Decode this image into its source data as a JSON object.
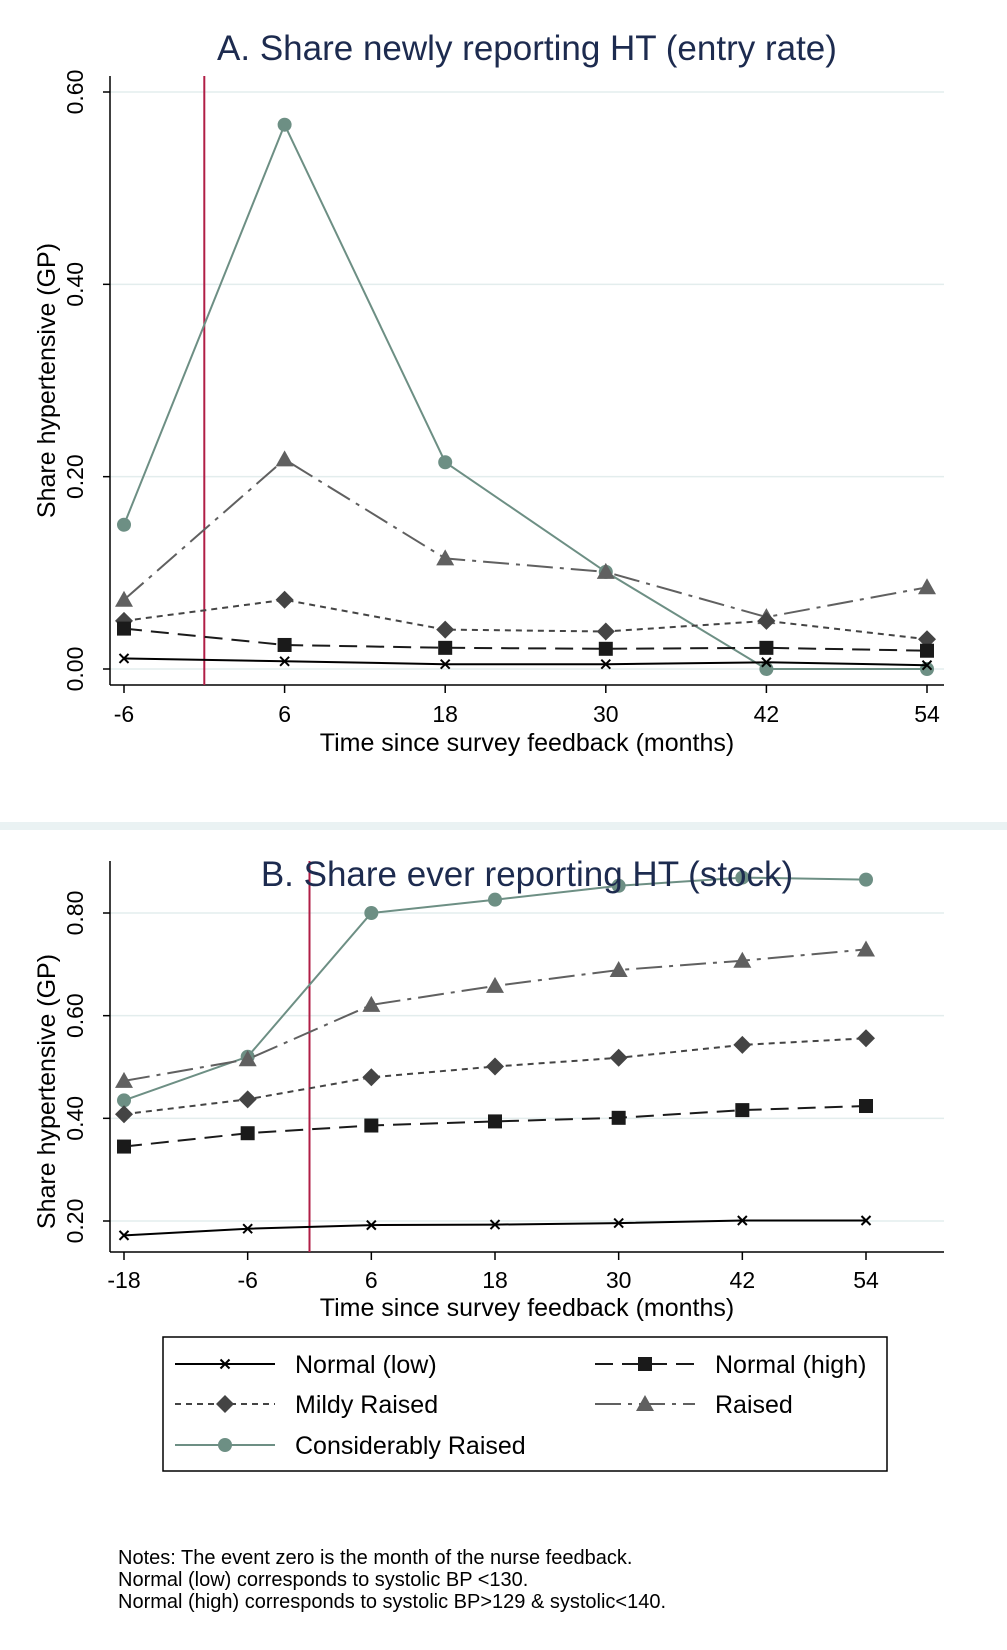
{
  "chart_data": [
    {
      "type": "line",
      "title": "A. Share newly reporting HT (entry rate)",
      "xlabel": "Time since survey feedback (months)",
      "ylabel": "Share hypertensive (GP)",
      "x": [
        -6,
        6,
        18,
        30,
        42,
        54
      ],
      "xticks": [
        "-6",
        "6",
        "18",
        "30",
        "42",
        "54"
      ],
      "yticks": [
        "0.00",
        "0.20",
        "0.40",
        "0.60"
      ],
      "xlim": [
        -6,
        54
      ],
      "ylim": [
        0,
        0.6
      ],
      "event_line_x": 0,
      "grid": true,
      "series": [
        {
          "key": "normal_low",
          "name": "Normal (low)",
          "values": [
            0.011,
            0.008,
            0.005,
            0.005,
            0.007,
            0.004
          ]
        },
        {
          "key": "normal_high",
          "name": "Normal (high)",
          "values": [
            0.042,
            0.025,
            0.022,
            0.021,
            0.022,
            0.019
          ]
        },
        {
          "key": "mildly_raised",
          "name": "Mildy Raised",
          "values": [
            0.05,
            0.072,
            0.041,
            0.039,
            0.05,
            0.031
          ]
        },
        {
          "key": "raised",
          "name": "Raised",
          "values": [
            0.072,
            0.218,
            0.115,
            0.101,
            0.054,
            0.085
          ]
        },
        {
          "key": "considerably_raised",
          "name": "Considerably Raised",
          "values": [
            0.15,
            0.566,
            0.215,
            0.101,
            0.0,
            0.0
          ]
        }
      ]
    },
    {
      "type": "line",
      "title": "B. Share ever reporting HT (stock)",
      "xlabel": "Time since survey feedback (months)",
      "ylabel": "Share hypertensive (GP)",
      "x": [
        -18,
        -6,
        6,
        18,
        30,
        42,
        54
      ],
      "xticks": [
        "-18",
        "-6",
        "6",
        "18",
        "30",
        "42",
        "54"
      ],
      "yticks": [
        "0.20",
        "0.40",
        "0.60",
        "0.80"
      ],
      "xlim": [
        -18,
        54
      ],
      "ylim": [
        0.2,
        0.8
      ],
      "event_line_x": 0,
      "grid": true,
      "series": [
        {
          "key": "normal_low",
          "name": "Normal (low)",
          "values": [
            0.172,
            0.185,
            0.192,
            0.193,
            0.196,
            0.201,
            0.201
          ]
        },
        {
          "key": "normal_high",
          "name": "Normal (high)",
          "values": [
            0.345,
            0.371,
            0.386,
            0.394,
            0.401,
            0.416,
            0.424
          ]
        },
        {
          "key": "mildly_raised",
          "name": "Mildy Raised",
          "values": [
            0.408,
            0.437,
            0.48,
            0.501,
            0.518,
            0.543,
            0.556
          ]
        },
        {
          "key": "raised",
          "name": "Raised",
          "values": [
            0.473,
            0.515,
            0.621,
            0.658,
            0.689,
            0.707,
            0.729
          ]
        },
        {
          "key": "considerably_raised",
          "name": "Considerably Raised",
          "values": [
            0.435,
            0.52,
            0.8,
            0.826,
            0.853,
            0.869,
            0.865
          ]
        }
      ]
    }
  ],
  "legend": {
    "position": "bottom",
    "items": [
      {
        "key": "normal_low",
        "label": "Normal (low)"
      },
      {
        "key": "normal_high",
        "label": "Normal (high)"
      },
      {
        "key": "mildly_raised",
        "label": "Mildy Raised"
      },
      {
        "key": "raised",
        "label": "Raised"
      },
      {
        "key": "considerably_raised",
        "label": "Considerably Raised"
      }
    ]
  },
  "styles": {
    "normal_low": {
      "color": "#000000",
      "marker": "x-mark",
      "dash": ""
    },
    "normal_high": {
      "color": "#1a1a1a",
      "marker": "square",
      "dash": "18 9"
    },
    "mildly_raised": {
      "color": "#444444",
      "marker": "diamond",
      "dash": "6 5"
    },
    "raised": {
      "color": "#606060",
      "marker": "triangle",
      "dash": "26 7 4 7"
    },
    "considerably_raised": {
      "color": "#6d8f84",
      "marker": "circle",
      "dash": ""
    },
    "event_line_color": "#b01e46",
    "grid_color": "#e3eded",
    "title_color": "#1d2b4f"
  },
  "notes": [
    "Notes: The event zero is the month of the nurse feedback.",
    "Normal (low) corresponds to systolic BP <130.",
    "Normal (high) corresponds to systolic BP>129 & systolic<140."
  ]
}
